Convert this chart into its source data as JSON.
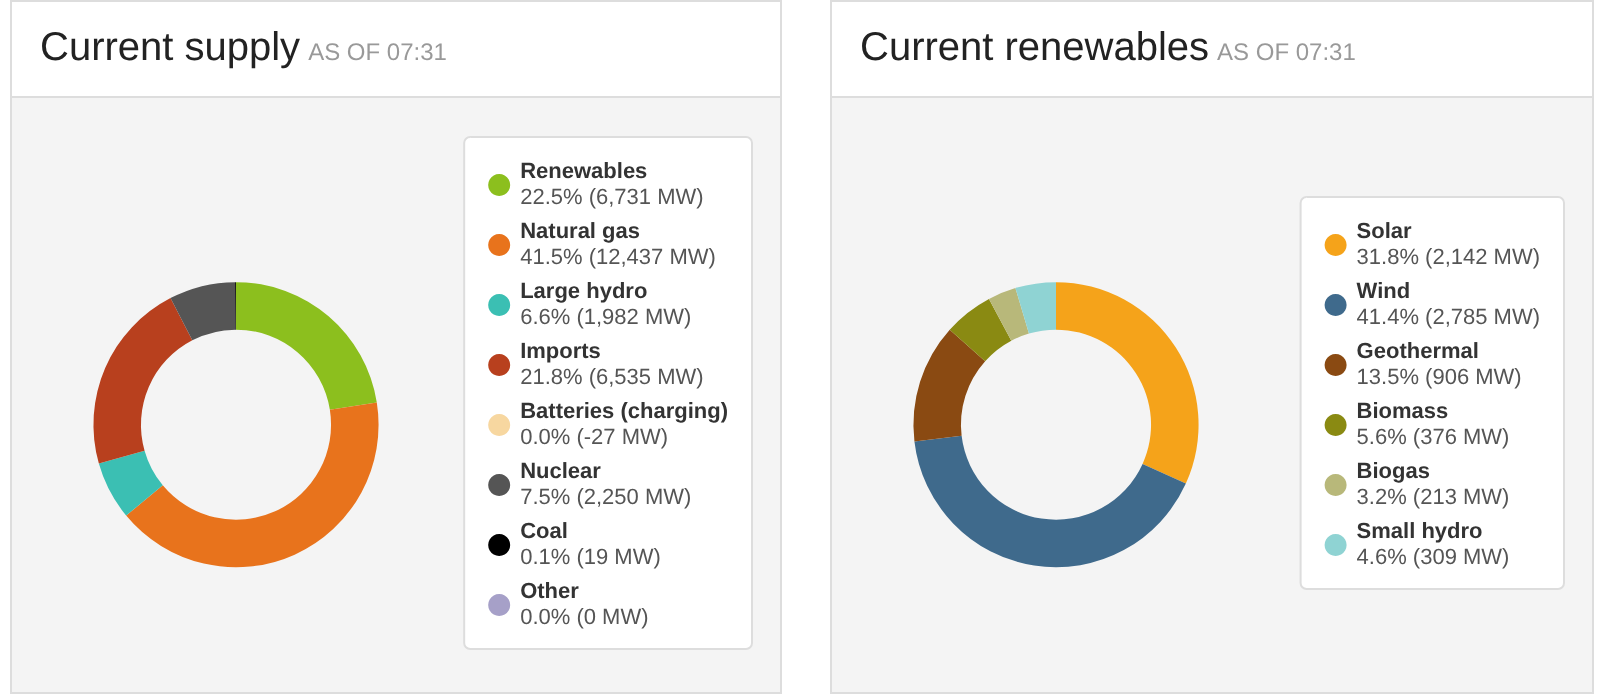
{
  "chart_data": [
    {
      "type": "donut",
      "title": "Current supply",
      "subtitle": "AS OF 07:31",
      "legend": "right",
      "categories": [
        "Renewables",
        "Natural gas",
        "Large hydro",
        "Imports",
        "Batteries (charging)",
        "Nuclear",
        "Coal",
        "Other"
      ],
      "values": [
        22.5,
        41.5,
        6.6,
        21.8,
        0.0,
        7.5,
        0.1,
        0.0
      ],
      "value_labels": [
        "22.5% (6,731 MW)",
        "41.5% (12,437 MW)",
        "6.6% (1,982 MW)",
        "21.8% (6,535 MW)",
        "0.0% (-27 MW)",
        "7.5% (2,250 MW)",
        "0.1% (19 MW)",
        "0.0% (0 MW)"
      ],
      "colors": [
        "#8cbf1e",
        "#e8731c",
        "#3bbfb3",
        "#b8401e",
        "#f7d7a0",
        "#555555",
        "#000000",
        "#a6a0c8"
      ]
    },
    {
      "type": "donut",
      "title": "Current renewables",
      "subtitle": "AS OF 07:31",
      "legend": "right",
      "categories": [
        "Solar",
        "Wind",
        "Geothermal",
        "Biomass",
        "Biogas",
        "Small hydro"
      ],
      "values": [
        31.8,
        41.4,
        13.5,
        5.6,
        3.2,
        4.6
      ],
      "value_labels": [
        "31.8% (2,142 MW)",
        "41.4% (2,785 MW)",
        "13.5% (906 MW)",
        "5.6% (376 MW)",
        "3.2% (213 MW)",
        "4.6% (309 MW)"
      ],
      "colors": [
        "#f5a31a",
        "#3f6a8c",
        "#8a4a12",
        "#8a8a12",
        "#b8b87a",
        "#8fd3d3"
      ]
    }
  ]
}
